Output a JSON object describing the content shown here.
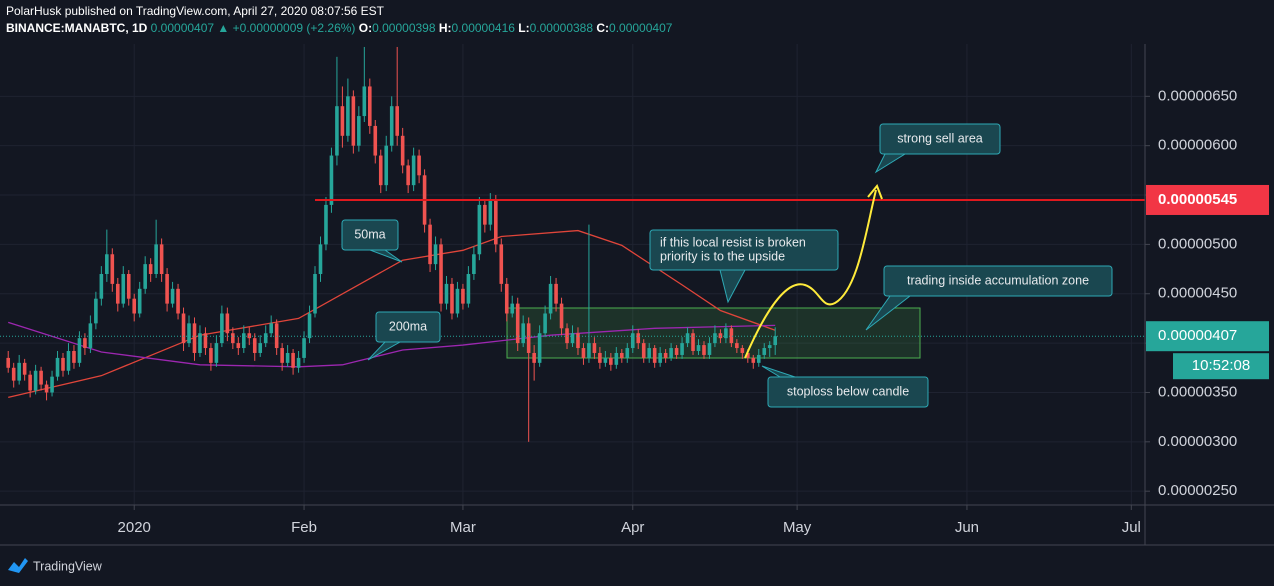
{
  "header": {
    "line1": "PolarHusk published on TradingView.com, April 27, 2020 08:07:56 EST",
    "symbol": "BINANCE:MANABTC, 1D",
    "price": "0.00000407",
    "arrow": "▲",
    "change": "+0.00000009 (+2.26%)",
    "ohlc": [
      {
        "k": "O:",
        "v": "0.00000398"
      },
      {
        "k": "H:",
        "v": "0.00000416"
      },
      {
        "k": "L:",
        "v": "0.00000388"
      },
      {
        "k": "C:",
        "v": "0.00000407"
      }
    ]
  },
  "footer": "TradingView",
  "chart_data": {
    "type": "candlestick",
    "up_color": "#26a69a",
    "down_color": "#ef5350",
    "xlim": [
      -1.5,
      207.5
    ],
    "xticks": [
      {
        "value": 23,
        "label": "2020"
      },
      {
        "value": 54,
        "label": "Feb"
      },
      {
        "value": 83,
        "label": "Mar"
      },
      {
        "value": 114,
        "label": "Apr"
      },
      {
        "value": 144,
        "label": "May"
      },
      {
        "value": 175,
        "label": "Jun"
      },
      {
        "value": 205,
        "label": "Jul"
      }
    ],
    "ylim": [
      2.36e-06,
      7.03e-06
    ],
    "yticks": [
      {
        "value": 2.5e-06,
        "label": "0.00000250"
      },
      {
        "value": 3e-06,
        "label": "0.00000300"
      },
      {
        "value": 3.5e-06,
        "label": "0.00000350"
      },
      {
        "value": 4e-06,
        "label": "0.00000400"
      },
      {
        "value": 4.5e-06,
        "label": "0.00000450"
      },
      {
        "value": 5e-06,
        "label": "0.00000500"
      },
      {
        "value": 5.5e-06,
        "label": "0.00000550"
      },
      {
        "value": 6e-06,
        "label": "0.00000600"
      },
      {
        "value": 6.5e-06,
        "label": "0.00000650"
      }
    ],
    "grid": true,
    "candles": [
      [
        3.85e-06,
        3.92e-06,
        3.7e-06,
        3.75e-06
      ],
      [
        3.75e-06,
        3.8e-06,
        3.55e-06,
        3.62e-06
      ],
      [
        3.62e-06,
        3.88e-06,
        3.58e-06,
        3.8e-06
      ],
      [
        3.8e-06,
        3.84e-06,
        3.62e-06,
        3.68e-06
      ],
      [
        3.68e-06,
        3.72e-06,
        3.45e-06,
        3.52e-06
      ],
      [
        3.52e-06,
        3.78e-06,
        3.48e-06,
        3.72e-06
      ],
      [
        3.72e-06,
        3.76e-06,
        3.52e-06,
        3.58e-06
      ],
      [
        3.58e-06,
        3.62e-06,
        3.42e-06,
        3.5e-06
      ],
      [
        3.5e-06,
        3.72e-06,
        3.46e-06,
        3.66e-06
      ],
      [
        3.66e-06,
        3.92e-06,
        3.62e-06,
        3.85e-06
      ],
      [
        3.85e-06,
        3.9e-06,
        3.66e-06,
        3.72e-06
      ],
      [
        3.72e-06,
        4e-06,
        3.68e-06,
        3.92e-06
      ],
      [
        3.92e-06,
        3.98e-06,
        3.74e-06,
        3.8e-06
      ],
      [
        3.8e-06,
        4.12e-06,
        3.76e-06,
        4.05e-06
      ],
      [
        4.05e-06,
        4.1e-06,
        3.88e-06,
        3.95e-06
      ],
      [
        3.95e-06,
        4.28e-06,
        3.9e-06,
        4.2e-06
      ],
      [
        4.2e-06,
        4.52e-06,
        4.14e-06,
        4.45e-06
      ],
      [
        4.45e-06,
        4.78e-06,
        4.38e-06,
        4.7e-06
      ],
      [
        4.7e-06,
        5.15e-06,
        4.62e-06,
        4.9e-06
      ],
      [
        4.9e-06,
        4.96e-06,
        4.52e-06,
        4.6e-06
      ],
      [
        4.6e-06,
        4.66e-06,
        4.32e-06,
        4.4e-06
      ],
      [
        4.4e-06,
        4.78e-06,
        4.36e-06,
        4.7e-06
      ],
      [
        4.7e-06,
        4.74e-06,
        4.38e-06,
        4.45e-06
      ],
      [
        4.45e-06,
        4.5e-06,
        4.22e-06,
        4.3e-06
      ],
      [
        4.3e-06,
        4.62e-06,
        4.26e-06,
        4.55e-06
      ],
      [
        4.55e-06,
        4.88e-06,
        4.5e-06,
        4.8e-06
      ],
      [
        4.8e-06,
        4.86e-06,
        4.62e-06,
        4.7e-06
      ],
      [
        4.7e-06,
        5.25e-06,
        4.66e-06,
        5e-06
      ],
      [
        5e-06,
        5.06e-06,
        4.62e-06,
        4.7e-06
      ],
      [
        4.7e-06,
        4.76e-06,
        4.32e-06,
        4.4e-06
      ],
      [
        4.4e-06,
        4.62e-06,
        4.36e-06,
        4.55e-06
      ],
      [
        4.55e-06,
        4.6e-06,
        4.24e-06,
        4.3e-06
      ],
      [
        4.3e-06,
        4.36e-06,
        3.92e-06,
        4e-06
      ],
      [
        4e-06,
        4.28e-06,
        3.96e-06,
        4.2e-06
      ],
      [
        4.2e-06,
        4.26e-06,
        3.82e-06,
        3.9e-06
      ],
      [
        3.9e-06,
        4.18e-06,
        3.86e-06,
        4.1e-06
      ],
      [
        4.1e-06,
        4.16e-06,
        3.88e-06,
        3.95e-06
      ],
      [
        3.95e-06,
        4e-06,
        3.72e-06,
        3.8e-06
      ],
      [
        3.8e-06,
        4.08e-06,
        3.76e-06,
        4e-06
      ],
      [
        4e-06,
        4.38e-06,
        3.96e-06,
        4.3e-06
      ],
      [
        4.3e-06,
        4.36e-06,
        4.02e-06,
        4.1e-06
      ],
      [
        4.1e-06,
        4.16e-06,
        3.94e-06,
        4e-06
      ],
      [
        4e-06,
        4.06e-06,
        3.88e-06,
        3.95e-06
      ],
      [
        3.95e-06,
        4.18e-06,
        3.9e-06,
        4.1e-06
      ],
      [
        4.1e-06,
        4.16e-06,
        3.98e-06,
        4.05e-06
      ],
      [
        4.05e-06,
        4.1e-06,
        3.82e-06,
        3.9e-06
      ],
      [
        3.9e-06,
        4.08e-06,
        3.86e-06,
        4e-06
      ],
      [
        4e-06,
        4.18e-06,
        3.96e-06,
        4.1e-06
      ],
      [
        4.1e-06,
        4.28e-06,
        4.06e-06,
        4.2e-06
      ],
      [
        4.2e-06,
        4.24e-06,
        3.88e-06,
        3.95e-06
      ],
      [
        3.95e-06,
        4e-06,
        3.72e-06,
        3.8e-06
      ],
      [
        3.8e-06,
        3.98e-06,
        3.76e-06,
        3.9e-06
      ],
      [
        3.9e-06,
        3.94e-06,
        3.68e-06,
        3.75e-06
      ],
      [
        3.75e-06,
        3.92e-06,
        3.7e-06,
        3.85e-06
      ],
      [
        3.85e-06,
        4.12e-06,
        3.8e-06,
        4.05e-06
      ],
      [
        4.05e-06,
        4.38e-06,
        4e-06,
        4.3e-06
      ],
      [
        4.3e-06,
        4.78e-06,
        4.26e-06,
        4.7e-06
      ],
      [
        4.7e-06,
        5.08e-06,
        4.62e-06,
        5e-06
      ],
      [
        5e-06,
        5.48e-06,
        4.94e-06,
        5.4e-06
      ],
      [
        5.4e-06,
        5.98e-06,
        5.32e-06,
        5.9e-06
      ],
      [
        5.9e-06,
        6.9e-06,
        5.8e-06,
        6.4e-06
      ],
      [
        6.4e-06,
        6.6e-06,
        5.98e-06,
        6.1e-06
      ],
      [
        6.1e-06,
        6.68e-06,
        6.04e-06,
        6.5e-06
      ],
      [
        6.5e-06,
        6.56e-06,
        5.92e-06,
        6e-06
      ],
      [
        6e-06,
        6.4e-06,
        5.94e-06,
        6.3e-06
      ],
      [
        6.3e-06,
        7e-06,
        6.24e-06,
        6.6e-06
      ],
      [
        6.6e-06,
        6.68e-06,
        6.12e-06,
        6.2e-06
      ],
      [
        6.2e-06,
        6.26e-06,
        5.82e-06,
        5.9e-06
      ],
      [
        5.9e-06,
        5.96e-06,
        5.52e-06,
        5.6e-06
      ],
      [
        5.6e-06,
        6.1e-06,
        5.54e-06,
        6e-06
      ],
      [
        6e-06,
        6.5e-06,
        5.94e-06,
        6.4e-06
      ],
      [
        6.4e-06,
        7e-06,
        6e-06,
        6.1e-06
      ],
      [
        6.1e-06,
        6.18e-06,
        5.72e-06,
        5.8e-06
      ],
      [
        5.8e-06,
        5.86e-06,
        5.52e-06,
        5.6e-06
      ],
      [
        5.6e-06,
        5.98e-06,
        5.54e-06,
        5.9e-06
      ],
      [
        5.9e-06,
        5.96e-06,
        5.62e-06,
        5.7e-06
      ],
      [
        5.7e-06,
        5.76e-06,
        5.12e-06,
        5.2e-06
      ],
      [
        5.2e-06,
        5.26e-06,
        4.72e-06,
        4.8e-06
      ],
      [
        4.8e-06,
        5.08e-06,
        4.74e-06,
        5e-06
      ],
      [
        5e-06,
        5.06e-06,
        4.32e-06,
        4.4e-06
      ],
      [
        4.4e-06,
        4.68e-06,
        4.34e-06,
        4.6e-06
      ],
      [
        4.6e-06,
        4.66e-06,
        4.24e-06,
        4.3e-06
      ],
      [
        4.3e-06,
        4.62e-06,
        4.26e-06,
        4.55e-06
      ],
      [
        4.55e-06,
        4.6e-06,
        4.34e-06,
        4.4e-06
      ],
      [
        4.4e-06,
        4.78e-06,
        4.36e-06,
        4.7e-06
      ],
      [
        4.7e-06,
        4.98e-06,
        4.64e-06,
        4.9e-06
      ],
      [
        4.9e-06,
        5.48e-06,
        4.84e-06,
        5.4e-06
      ],
      [
        5.4e-06,
        5.46e-06,
        5.12e-06,
        5.2e-06
      ],
      [
        5.2e-06,
        5.52e-06,
        5.14e-06,
        5.45e-06
      ],
      [
        5.45e-06,
        5.5e-06,
        4.92e-06,
        5e-06
      ],
      [
        5e-06,
        5.06e-06,
        4.52e-06,
        4.6e-06
      ],
      [
        4.6e-06,
        4.66e-06,
        4.22e-06,
        4.3e-06
      ],
      [
        4.3e-06,
        4.48e-06,
        4.26e-06,
        4.4e-06
      ],
      [
        4.4e-06,
        4.46e-06,
        3.92e-06,
        4e-06
      ],
      [
        4e-06,
        4.28e-06,
        3.96e-06,
        4.2e-06
      ],
      [
        4.2e-06,
        4.26e-06,
        3e-06,
        3.9e-06
      ],
      [
        3.9e-06,
        3.98e-06,
        3.62e-06,
        3.8e-06
      ],
      [
        3.8e-06,
        4.18e-06,
        3.76e-06,
        4.1e-06
      ],
      [
        4.1e-06,
        4.38e-06,
        4.06e-06,
        4.3e-06
      ],
      [
        4.3e-06,
        4.68e-06,
        4.24e-06,
        4.6e-06
      ],
      [
        4.6e-06,
        4.66e-06,
        4.32e-06,
        4.4e-06
      ],
      [
        4.4e-06,
        4.46e-06,
        4.08e-06,
        4.15e-06
      ],
      [
        4.15e-06,
        4.2e-06,
        3.94e-06,
        4e-06
      ],
      [
        4e-06,
        4.18e-06,
        3.96e-06,
        4.1e-06
      ],
      [
        4.1e-06,
        4.16e-06,
        3.88e-06,
        3.95e-06
      ],
      [
        3.95e-06,
        4e-06,
        3.78e-06,
        3.85e-06
      ],
      [
        3.85e-06,
        5.2e-06,
        3.8e-06,
        4e-06
      ],
      [
        4e-06,
        4.06e-06,
        3.84e-06,
        3.9e-06
      ],
      [
        3.9e-06,
        3.96e-06,
        3.74e-06,
        3.8e-06
      ],
      [
        3.8e-06,
        3.92e-06,
        3.76e-06,
        3.85e-06
      ],
      [
        3.85e-06,
        3.9e-06,
        3.72e-06,
        3.78e-06
      ],
      [
        3.78e-06,
        3.96e-06,
        3.74e-06,
        3.9e-06
      ],
      [
        3.9e-06,
        3.94e-06,
        3.8e-06,
        3.85e-06
      ],
      [
        3.85e-06,
        4e-06,
        3.8e-06,
        3.95e-06
      ],
      [
        3.95e-06,
        4.18e-06,
        3.9e-06,
        4.1e-06
      ],
      [
        4.1e-06,
        4.14e-06,
        3.94e-06,
        4e-06
      ],
      [
        4e-06,
        4.04e-06,
        3.8e-06,
        3.85e-06
      ],
      [
        3.85e-06,
        4e-06,
        3.8e-06,
        3.95e-06
      ],
      [
        3.95e-06,
        3.98e-06,
        3.75e-06,
        3.8e-06
      ],
      [
        3.8e-06,
        3.96e-06,
        3.76e-06,
        3.9e-06
      ],
      [
        3.9e-06,
        3.94e-06,
        3.8e-06,
        3.85e-06
      ],
      [
        3.85e-06,
        4e-06,
        3.82e-06,
        3.95e-06
      ],
      [
        3.95e-06,
        3.98e-06,
        3.84e-06,
        3.88e-06
      ],
      [
        3.88e-06,
        4.06e-06,
        3.84e-06,
        4e-06
      ],
      [
        4e-06,
        4.16e-06,
        3.96e-06,
        4.1e-06
      ],
      [
        4.1e-06,
        4.14e-06,
        3.88e-06,
        3.92e-06
      ],
      [
        3.92e-06,
        4.04e-06,
        3.88e-06,
        3.98e-06
      ],
      [
        3.98e-06,
        4.02e-06,
        3.84e-06,
        3.88e-06
      ],
      [
        3.88e-06,
        4.06e-06,
        3.84e-06,
        4e-06
      ],
      [
        4e-06,
        4.18e-06,
        3.96e-06,
        4.1e-06
      ],
      [
        4.1e-06,
        4.14e-06,
        4e-06,
        4.05e-06
      ],
      [
        4.05e-06,
        4.2e-06,
        4e-06,
        4.15e-06
      ],
      [
        4.15e-06,
        4.18e-06,
        3.96e-06,
        4e-06
      ],
      [
        4e-06,
        4.04e-06,
        3.9e-06,
        3.95e-06
      ],
      [
        3.95e-06,
        3.98e-06,
        3.84e-06,
        3.9e-06
      ],
      [
        3.9e-06,
        3.94e-06,
        3.8e-06,
        3.85e-06
      ],
      [
        3.85e-06,
        3.88e-06,
        3.74e-06,
        3.8e-06
      ],
      [
        3.8e-06,
        3.94e-06,
        3.76e-06,
        3.88e-06
      ],
      [
        3.88e-06,
        4e-06,
        3.84e-06,
        3.95e-06
      ],
      [
        3.95e-06,
        4.02e-06,
        3.86e-06,
        3.98e-06
      ],
      [
        3.98e-06,
        4.16e-06,
        3.88e-06,
        4.07e-06
      ]
    ],
    "lines": [
      {
        "color": "#e0453a",
        "x": [
          0,
          17,
          35,
          53,
          72,
          83,
          90,
          104,
          112,
          123,
          130,
          140
        ],
        "values": [
          3.45e-06,
          3.67e-06,
          4.08e-06,
          4.25e-06,
          4.84e-06,
          4.94e-06,
          5.08e-06,
          5.14e-06,
          4.99e-06,
          4.59e-06,
          4.33e-06,
          4.13e-06
        ]
      },
      {
        "color": "#9c27b0",
        "x": [
          0,
          17,
          35,
          53,
          61,
          72,
          83,
          99,
          118,
          140
        ],
        "values": [
          4.21e-06,
          3.91e-06,
          3.78e-06,
          3.76e-06,
          3.78e-06,
          3.93e-06,
          3.98e-06,
          4.08e-06,
          4.15e-06,
          4.18e-06
        ]
      }
    ],
    "resistance": {
      "value": 5.45e-06,
      "label": "0.00000545",
      "color": "#e0191e"
    },
    "last_price": {
      "value": 4.07e-06,
      "label": "0.00000407",
      "color": "#26a69a"
    },
    "countdown": "10:52:08",
    "annotations": [
      {
        "lines": [
          "50ma"
        ]
      },
      {
        "lines": [
          "200ma"
        ]
      },
      {
        "lines": [
          "strong sell area"
        ]
      },
      {
        "lines": [
          "if this local resist is broken",
          "priority is to the upside"
        ]
      },
      {
        "lines": [
          "trading inside accumulation zone"
        ]
      },
      {
        "lines": [
          "stoploss below candle"
        ]
      }
    ]
  }
}
